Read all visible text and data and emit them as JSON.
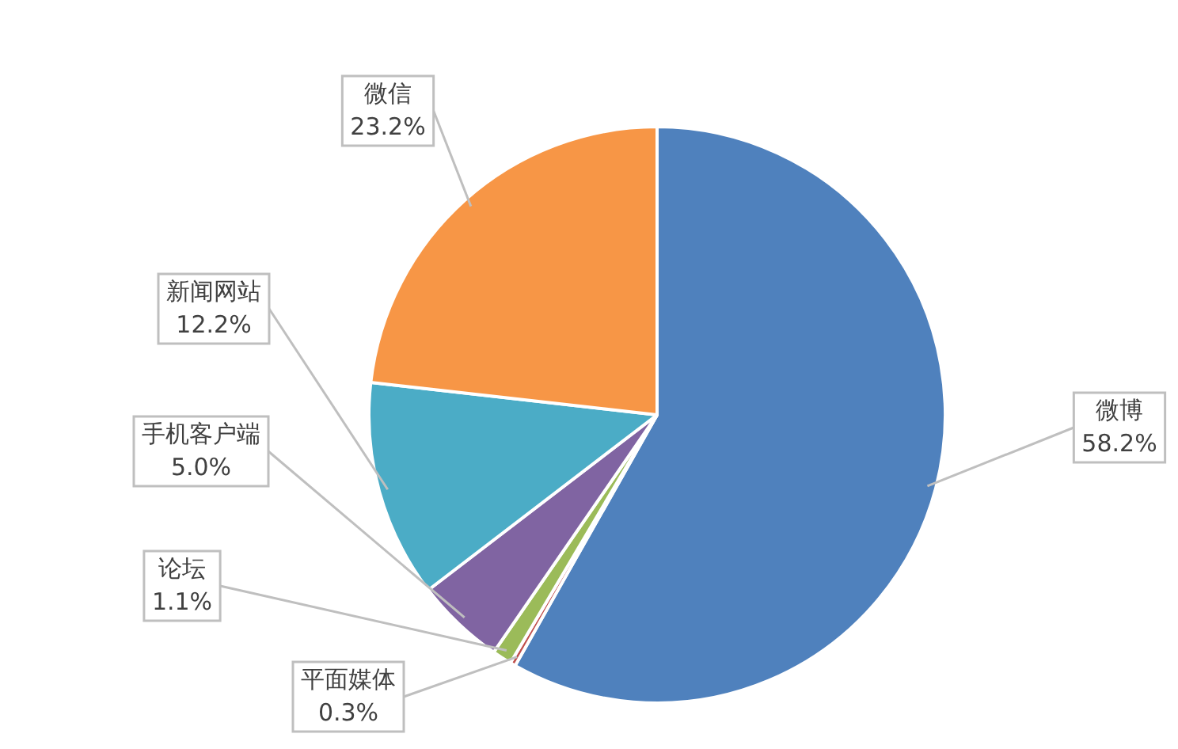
{
  "chart_data": {
    "type": "pie",
    "categories": [
      "微博",
      "平面媒体",
      "论坛",
      "手机客户端",
      "新闻网站",
      "微信"
    ],
    "values": [
      58.2,
      0.3,
      1.1,
      5.0,
      12.2,
      23.2
    ],
    "colors": [
      "#4f81bd",
      "#c0504d",
      "#9bbb59",
      "#8064a2",
      "#4bacc6",
      "#f79646"
    ],
    "value_labels": [
      "58.2%",
      "0.3%",
      "1.1%",
      "5.0%",
      "12.2%",
      "23.2%"
    ],
    "legend": false
  }
}
